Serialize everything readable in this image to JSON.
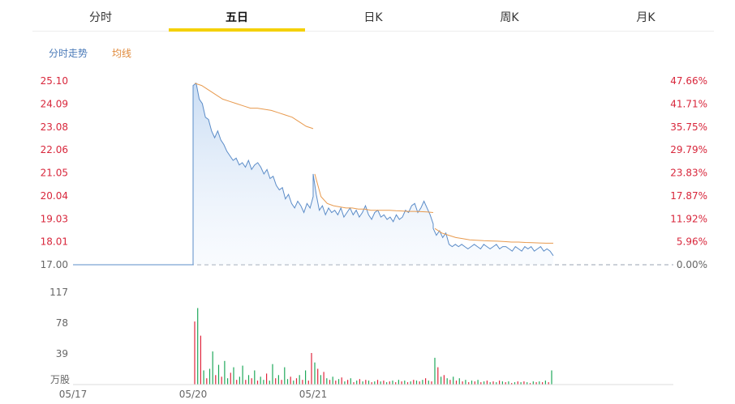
{
  "tabs": [
    {
      "label": "分时",
      "active": false
    },
    {
      "label": "五日",
      "active": true
    },
    {
      "label": "日K",
      "active": false
    },
    {
      "label": "周K",
      "active": false
    },
    {
      "label": "月K",
      "active": false
    }
  ],
  "legend": {
    "trend": "分时走势",
    "avg": "均线"
  },
  "colors": {
    "price": "#5b8cc8",
    "avg": "#e89a4e",
    "up": "#e0253c",
    "down": "#1ea85a",
    "axis_red": "#d8263b",
    "axis_gray": "#666666"
  },
  "chart_data": {
    "type": "line",
    "price_axis_ticks": [
      "25.10",
      "24.09",
      "23.08",
      "22.06",
      "21.05",
      "20.04",
      "19.03",
      "18.01",
      "17.00"
    ],
    "pct_axis_ticks": [
      "47.66%",
      "41.71%",
      "35.75%",
      "29.79%",
      "23.83%",
      "17.87%",
      "11.92%",
      "5.96%",
      "0.00%"
    ],
    "ylim": [
      17.0,
      25.1
    ],
    "base_price": 17.0,
    "volume_ticks": [
      "117",
      "78",
      "39"
    ],
    "volume_unit": "万股",
    "volume_ylim": [
      0,
      117
    ],
    "date_labels": [
      "05/17",
      "05/20",
      "05/21"
    ],
    "date_index": [
      0,
      1,
      2
    ],
    "days_total": 5,
    "price_series": [
      {
        "day": 0,
        "values": [
          17.0,
          17.0
        ]
      },
      {
        "day": 1,
        "values": [
          24.9,
          25.0,
          24.3,
          24.1,
          23.5,
          23.4,
          22.9,
          22.6,
          22.9,
          22.5,
          22.3,
          22.0,
          21.8,
          21.6,
          21.7,
          21.4,
          21.5,
          21.3,
          21.6,
          21.2,
          21.4,
          21.5,
          21.3,
          21.0,
          21.2,
          20.8,
          20.9,
          20.5,
          20.3,
          20.4,
          19.9,
          20.1,
          19.7,
          19.5,
          19.8,
          19.6,
          19.3,
          19.7,
          19.5,
          20.0
        ]
      },
      {
        "day": 2,
        "values": [
          21.0,
          20.1,
          19.4,
          19.6,
          19.2,
          19.5,
          19.3,
          19.4,
          19.2,
          19.5,
          19.1,
          19.3,
          19.5,
          19.2,
          19.4,
          19.1,
          19.3,
          19.6,
          19.2,
          19.0,
          19.3,
          19.4,
          19.1,
          19.2,
          19.0,
          19.1,
          18.9,
          19.2,
          19.0,
          19.1,
          19.4,
          19.3,
          19.6,
          19.7,
          19.3,
          19.5,
          19.8,
          19.5,
          19.2,
          18.8
        ]
      },
      {
        "day": 3,
        "values": [
          18.6,
          18.3,
          18.5,
          18.2,
          18.4,
          17.9,
          17.8,
          17.9,
          17.8,
          17.9,
          17.8,
          17.7,
          17.8,
          17.9,
          17.8,
          17.7,
          17.9,
          17.8,
          17.7,
          17.8,
          17.9,
          17.7,
          17.8,
          17.8,
          17.7,
          17.6,
          17.8,
          17.7,
          17.6,
          17.8,
          17.7,
          17.8,
          17.6,
          17.7,
          17.8,
          17.6,
          17.7,
          17.6,
          17.4
        ]
      }
    ],
    "avg_series": [
      {
        "day": 1,
        "values": [
          25.0,
          24.9,
          24.7,
          24.5,
          24.3,
          24.2,
          24.1,
          24.0,
          23.9,
          23.9,
          23.85,
          23.8,
          23.7,
          23.6,
          23.5,
          23.3,
          23.1,
          23.0
        ]
      },
      {
        "day": 2,
        "values": [
          21.0,
          20.0,
          19.7,
          19.6,
          19.55,
          19.5,
          19.5,
          19.45,
          19.45,
          19.4,
          19.4,
          19.4,
          19.4,
          19.38,
          19.37,
          19.35,
          19.35,
          19.34,
          19.33,
          19.3
        ]
      },
      {
        "day": 3,
        "values": [
          18.6,
          18.4,
          18.3,
          18.2,
          18.15,
          18.1,
          18.08,
          18.06,
          18.05,
          18.04,
          18.02,
          18.0,
          18.0,
          17.98,
          17.97,
          17.96,
          17.95,
          17.95
        ]
      }
    ],
    "volume_series": [
      {
        "day": 0,
        "values": []
      },
      {
        "day": 1,
        "values": [
          80,
          97,
          62,
          18,
          8,
          20,
          42,
          12,
          25,
          10,
          30,
          8,
          15,
          22,
          6,
          10,
          24,
          6,
          12,
          8,
          18,
          5,
          10,
          6,
          14,
          5,
          26,
          8,
          12,
          6,
          22,
          7,
          10,
          5,
          8,
          12,
          6,
          18,
          5,
          40
        ],
        "up": [
          true,
          false,
          true,
          false,
          true,
          false,
          false,
          true,
          false,
          true,
          false,
          false,
          true,
          false,
          true,
          false,
          false,
          true,
          false,
          true,
          false,
          true,
          false,
          false,
          true,
          false,
          false,
          true,
          false,
          true,
          false,
          false,
          true,
          false,
          true,
          false,
          true,
          false,
          true,
          true
        ]
      },
      {
        "day": 2,
        "values": [
          28,
          20,
          12,
          16,
          8,
          6,
          10,
          5,
          7,
          9,
          4,
          6,
          8,
          3,
          5,
          7,
          4,
          6,
          5,
          3,
          4,
          6,
          4,
          5,
          3,
          4,
          5,
          3,
          6,
          4,
          5,
          3,
          4,
          6,
          5,
          4,
          6,
          8,
          5,
          4
        ],
        "up": [
          false,
          true,
          false,
          true,
          false,
          true,
          false,
          true,
          false,
          true,
          false,
          true,
          false,
          true,
          false,
          true,
          false,
          true,
          false,
          true,
          false,
          true,
          false,
          true,
          false,
          true,
          false,
          true,
          false,
          true,
          false,
          true,
          false,
          true,
          false,
          true,
          false,
          true,
          false,
          true
        ]
      },
      {
        "day": 3,
        "values": [
          34,
          22,
          10,
          12,
          8,
          6,
          10,
          5,
          8,
          4,
          6,
          3,
          5,
          4,
          6,
          3,
          4,
          5,
          3,
          4,
          3,
          5,
          4,
          3,
          4,
          2,
          3,
          4,
          3,
          4,
          3,
          2,
          4,
          3,
          4,
          3,
          5,
          3,
          18
        ],
        "up": [
          false,
          true,
          false,
          true,
          false,
          true,
          false,
          true,
          false,
          true,
          false,
          true,
          false,
          true,
          false,
          true,
          false,
          true,
          false,
          true,
          false,
          true,
          false,
          true,
          false,
          true,
          false,
          true,
          false,
          true,
          false,
          true,
          false,
          true,
          false,
          true,
          false,
          true,
          false
        ]
      }
    ]
  }
}
